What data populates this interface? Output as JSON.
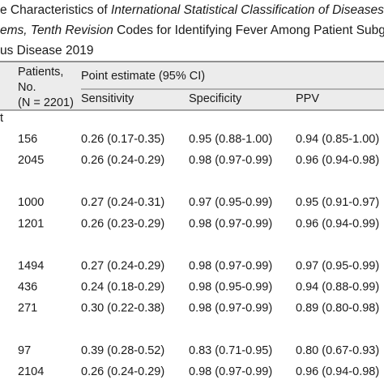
{
  "title": {
    "lines": [
      [
        {
          "text": "e Characteristics of "
        },
        {
          "text": "International Statistical Classification of Diseases a",
          "italic": true
        }
      ],
      [
        {
          "text": "ems, Tenth Revision",
          "italic": true
        },
        {
          "text": " Codes for Identifying Fever Among Patient Subgro"
        }
      ],
      [
        {
          "text": "us Disease 2019"
        }
      ]
    ]
  },
  "table": {
    "header": {
      "patients": [
        "Patients,",
        "No.",
        "(N = 2201)"
      ],
      "group": "Point estimate (95% CI)",
      "columns": [
        "Sensitivity",
        "Specificity",
        "PPV"
      ]
    },
    "rows": [
      {
        "label": "t"
      },
      {
        "cells": [
          "156",
          "0.26 (0.17-0.35)",
          "0.95 (0.88-1.00)",
          "0.94 (0.85-1.00)"
        ]
      },
      {
        "cells": [
          "2045",
          "0.26 (0.24-0.29)",
          "0.98 (0.97-0.99)",
          "0.96 (0.94-0.98)"
        ]
      },
      {},
      {
        "cells": [
          "1000",
          "0.27 (0.24-0.31)",
          "0.97 (0.95-0.99)",
          "0.95 (0.91-0.97)"
        ]
      },
      {
        "cells": [
          "1201",
          "0.26 (0.23-0.29)",
          "0.98 (0.97-0.99)",
          "0.96 (0.94-0.99)"
        ]
      },
      {},
      {
        "cells": [
          "1494",
          "0.27 (0.24-0.29)",
          "0.98 (0.97-0.99)",
          "0.97 (0.95-0.99)"
        ]
      },
      {
        "cells": [
          "436",
          "0.24 (0.18-0.29)",
          "0.98 (0.95-0.99)",
          "0.94 (0.88-0.99)"
        ]
      },
      {
        "cells": [
          "271",
          "0.30 (0.22-0.38)",
          "0.98 (0.97-0.99)",
          "0.89 (0.80-0.98)"
        ]
      },
      {},
      {
        "cells": [
          "97",
          "0.39 (0.28-0.52)",
          "0.83 (0.71-0.95)",
          "0.80 (0.67-0.93)"
        ]
      },
      {
        "cells": [
          "2104",
          "0.26 (0.24-0.29)",
          "0.98 (0.97-0.99)",
          "0.96 (0.94-0.98)"
        ]
      }
    ]
  }
}
